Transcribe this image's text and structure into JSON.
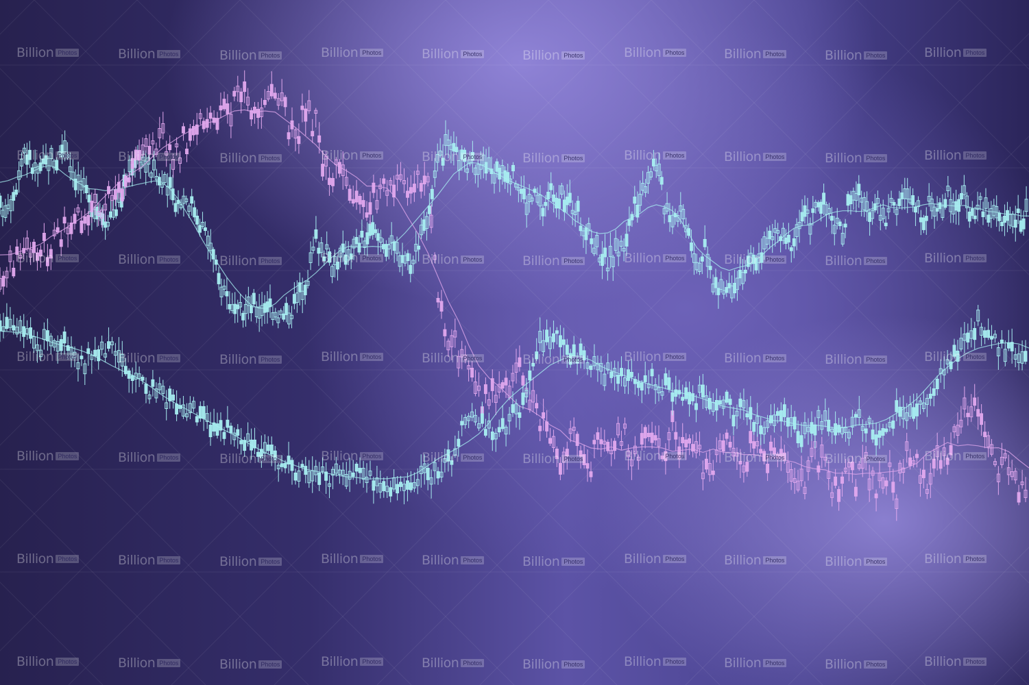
{
  "chart_data": {
    "type": "candlestick",
    "title": "",
    "xlabel": "",
    "ylabel": "",
    "axes_visible": false,
    "grid": true,
    "legend": "none",
    "series": [
      {
        "color": "#a8f0f2",
        "values": [
          58,
          60,
          66,
          78,
          72,
          70,
          75,
          74,
          80,
          70,
          66,
          60,
          58,
          55,
          57,
          62,
          72,
          76,
          73,
          70,
          66,
          64,
          60,
          62,
          58,
          52,
          46,
          34,
          30,
          22,
          24,
          26,
          25,
          27,
          24,
          22,
          25,
          30,
          36,
          48,
          44,
          40,
          42,
          44,
          46,
          48,
          50,
          48,
          46,
          44,
          42,
          40,
          52,
          56,
          72,
          78,
          76,
          74,
          72,
          74,
          72,
          70,
          72,
          70,
          66,
          60,
          62,
          58,
          64,
          62,
          60,
          58,
          52,
          48,
          44,
          40,
          44,
          46,
          56,
          62,
          70,
          74,
          60,
          56,
          58,
          52,
          40,
          44,
          34,
          30,
          32,
          36,
          38,
          40,
          44,
          48,
          50,
          46,
          48,
          56,
          54,
          60,
          58,
          52,
          50,
          64,
          62,
          56,
          60,
          54,
          58,
          60,
          62,
          58,
          56,
          60,
          58,
          62,
          60,
          62,
          56,
          60,
          56,
          58,
          52,
          56,
          54,
          58
        ]
      },
      {
        "color": "#e2a8ee",
        "values": [
          60,
          62,
          64,
          66,
          66,
          64,
          68,
          70,
          72,
          74,
          72,
          76,
          78,
          80,
          84,
          86,
          88,
          84,
          86,
          90,
          92,
          90,
          92,
          94,
          96,
          92,
          94,
          95,
          92,
          88,
          92,
          90,
          80,
          82,
          76,
          78,
          74,
          76,
          78,
          80,
          74,
          80,
          78,
          56,
          46,
          44,
          40,
          34,
          36,
          38,
          36,
          40,
          34,
          30,
          26,
          22,
          28,
          24,
          22,
          26,
          22,
          28,
          22,
          24,
          26,
          22,
          28,
          24,
          26,
          20,
          22,
          24,
          26,
          20,
          28,
          22,
          24,
          22,
          20,
          18,
          24,
          20,
          16,
          20,
          18,
          22,
          16,
          20,
          16,
          26,
          20,
          18,
          22,
          24,
          30,
          34,
          30,
          26,
          20,
          22,
          16,
          18
        ]
      },
      {
        "color": "#a8f0f2",
        "values": [
          80,
          82,
          78,
          74,
          72,
          76,
          74,
          70,
          66,
          68,
          72,
          70,
          64,
          60,
          58,
          56,
          54,
          52,
          48,
          50,
          46,
          44,
          42,
          40,
          38,
          36,
          34,
          32,
          30,
          28,
          26,
          27,
          25,
          26,
          24,
          28,
          26,
          24,
          22,
          24,
          22,
          26,
          26,
          28,
          30,
          40,
          46,
          44,
          42,
          40,
          46,
          50,
          62,
          74,
          76,
          74,
          70,
          68,
          66,
          62,
          64,
          60,
          62,
          56,
          60,
          58,
          56,
          54,
          52,
          56,
          50,
          54,
          48,
          50,
          46,
          44,
          48,
          46,
          42,
          40,
          44,
          46,
          42,
          40,
          46,
          44,
          40,
          44,
          48,
          46,
          50,
          54,
          60,
          66,
          70,
          76,
          80,
          78,
          72,
          70,
          68,
          68
        ]
      }
    ]
  },
  "watermark": {
    "main": "Billion",
    "sub": "Photos"
  }
}
